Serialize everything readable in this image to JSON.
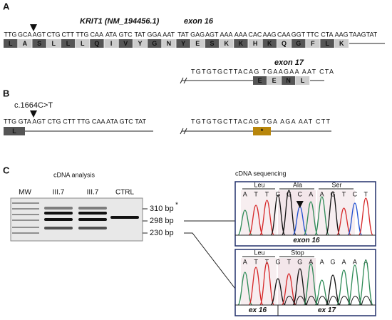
{
  "panel_a": {
    "label": "A",
    "gene": "KRIT1 (NM_194456.1)",
    "exon16": {
      "title": "exon 16",
      "codons": [
        "TTG",
        "GCA",
        "AGT",
        "CTG",
        "CTT",
        "TTG",
        "CAA",
        "ATA",
        "GTC",
        "TAT",
        "GGA",
        "AAT",
        "TAT",
        "GAG",
        "AGT",
        "AAA",
        "AAA",
        "CAC",
        "AAG",
        "CAA",
        "GGT",
        "TTC",
        "CTA",
        "AAG",
        "TAAGTAT"
      ],
      "amino_acids": [
        "L",
        "A",
        "S",
        "L",
        "L",
        "L",
        "Q",
        "I",
        "V",
        "Y",
        "G",
        "N",
        "Y",
        "E",
        "S",
        "K",
        "K",
        "H",
        "K",
        "Q",
        "G",
        "F",
        "L",
        "K"
      ]
    },
    "exon17": {
      "title": "exon 17",
      "sequence": "TGTGTGCTTACAG TGAAGAA AAT CTA",
      "amino_acids": [
        "E",
        "E",
        "N",
        "L"
      ]
    }
  },
  "panel_b": {
    "label": "B",
    "mutation": "c.1664C>T",
    "left": {
      "sequence": "TTG GTA AGT CTG CTT TTG CAA ATA GTC TAT",
      "amino_acids": [
        "L"
      ]
    },
    "right": {
      "sequence": "TGTGTGCTTACAG TGA AGA AAT CTT",
      "amino_acids": [
        "*"
      ]
    }
  },
  "panel_c": {
    "label": "C",
    "gel": {
      "title": "cDNA analysis",
      "lanes": [
        "MW",
        "III.7",
        "III.7",
        "CTRL"
      ],
      "bands": [
        {
          "label": "310 bp",
          "mark": "*"
        },
        {
          "label": "298 bp"
        },
        {
          "label": "230 bp"
        }
      ]
    },
    "sequencing": {
      "title": "cDNA sequencing",
      "traces": [
        {
          "residues": [
            "Leu",
            "Ala",
            "Ser"
          ],
          "bases": [
            "A",
            "T",
            "T",
            "G",
            "G",
            "C",
            "A",
            "A",
            "G",
            "T",
            "C",
            "T"
          ],
          "exons": [
            "exon 16"
          ]
        },
        {
          "residues": [
            "Leu",
            "Stop"
          ],
          "bases": [
            "A",
            "T",
            "T",
            "G",
            "T",
            "G",
            "A",
            "A",
            "G",
            "A",
            "A",
            "A"
          ],
          "exons": [
            "ex 16",
            "ex 17"
          ]
        }
      ]
    }
  }
}
